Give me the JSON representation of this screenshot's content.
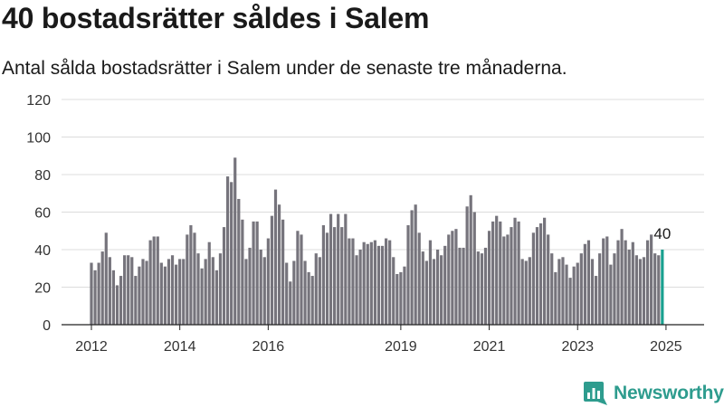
{
  "title": "40 bostadsrätter såldes i Salem",
  "subtitle": "Antal sålda bostadsrätter i Salem under de senaste tre månaderna.",
  "brand": {
    "name": "Newsworthy",
    "color": "#2e9c8e"
  },
  "colors": {
    "bar": "#76747c",
    "highlight": "#19a08f",
    "grid": "#dcdcdc",
    "axis": "#222222"
  },
  "chart_data": {
    "type": "bar",
    "title": "40 bostadsrätter såldes i Salem",
    "subtitle": "Antal sålda bostadsrätter i Salem under de senaste tre månaderna.",
    "xlabel": "",
    "ylabel": "",
    "ylim": [
      0,
      120
    ],
    "yticks": [
      0,
      20,
      40,
      60,
      80,
      100,
      120
    ],
    "x_start": "2012-01",
    "x_interval": "month",
    "x_ticks": [
      {
        "label": "2012",
        "index": 0
      },
      {
        "label": "2014",
        "index": 24
      },
      {
        "label": "2016",
        "index": 48
      },
      {
        "label": "2019",
        "index": 84
      },
      {
        "label": "2021",
        "index": 108
      },
      {
        "label": "2023",
        "index": 132
      },
      {
        "label": "2025",
        "index": 156
      }
    ],
    "grid": true,
    "highlight_last": true,
    "last_value_label": "40",
    "values": [
      33,
      29,
      33,
      39,
      49,
      36,
      29,
      21,
      26,
      37,
      37,
      36,
      26,
      31,
      35,
      34,
      45,
      47,
      47,
      33,
      31,
      35,
      37,
      32,
      35,
      35,
      48,
      53,
      49,
      38,
      30,
      35,
      44,
      36,
      29,
      38,
      52,
      79,
      76,
      89,
      67,
      56,
      35,
      41,
      55,
      55,
      40,
      36,
      46,
      58,
      72,
      64,
      56,
      33,
      23,
      34,
      50,
      48,
      34,
      28,
      26,
      38,
      36,
      53,
      49,
      59,
      52,
      59,
      52,
      59,
      46,
      46,
      37,
      40,
      44,
      43,
      44,
      45,
      42,
      42,
      46,
      45,
      36,
      27,
      28,
      31,
      53,
      61,
      64,
      49,
      39,
      34,
      45,
      35,
      40,
      37,
      42,
      48,
      50,
      51,
      41,
      41,
      63,
      69,
      60,
      39,
      38,
      41,
      50,
      55,
      58,
      55,
      47,
      48,
      52,
      57,
      55,
      35,
      34,
      36,
      49,
      52,
      54,
      57,
      48,
      38,
      28,
      35,
      36,
      32,
      25,
      31,
      33,
      38,
      43,
      45,
      35,
      26,
      38,
      46,
      47,
      32,
      38,
      45,
      51,
      45,
      40,
      44,
      37,
      35,
      36,
      45,
      48,
      38,
      37,
      40
    ]
  }
}
